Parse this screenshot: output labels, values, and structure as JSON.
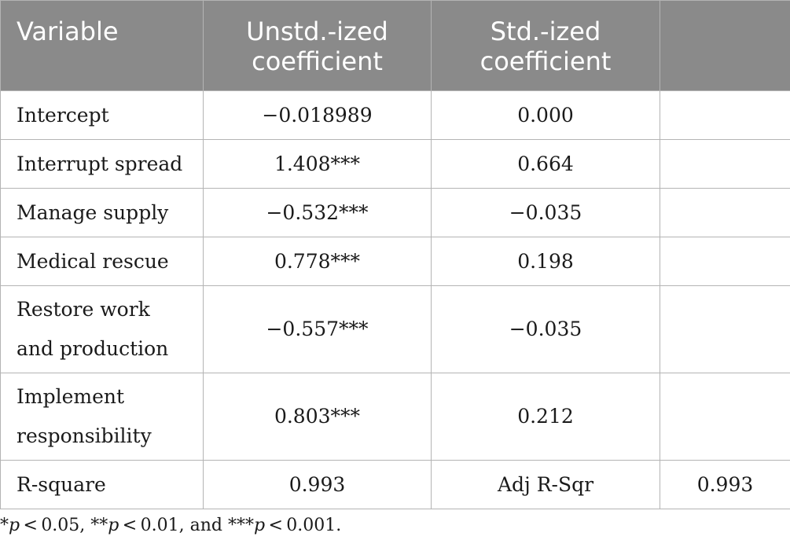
{
  "table": {
    "headers": [
      "Variable",
      "Unstd.-ized coefficient",
      "Std.-ized coefficient",
      ""
    ],
    "rows": [
      [
        "Intercept",
        "−0.018989",
        "0.000",
        ""
      ],
      [
        "Interrupt spread",
        "1.408***",
        "0.664",
        ""
      ],
      [
        "Manage supply",
        "−0.532***",
        "−0.035",
        ""
      ],
      [
        "Medical rescue",
        "0.778***",
        "0.198",
        ""
      ],
      [
        "Restore work and production",
        "−0.557***",
        "−0.035",
        ""
      ],
      [
        "Implement responsibility",
        "0.803***",
        "0.212",
        ""
      ],
      [
        "R-square",
        "0.993",
        "Adj R-Sqr",
        "0.993"
      ]
    ]
  },
  "footnote": {
    "s1": "*",
    "p1": "p",
    "t1": " < 0.05, **",
    "p2": "p",
    "t2": " < 0.01, and ***",
    "p3": "p",
    "t3": " < 0.001."
  }
}
